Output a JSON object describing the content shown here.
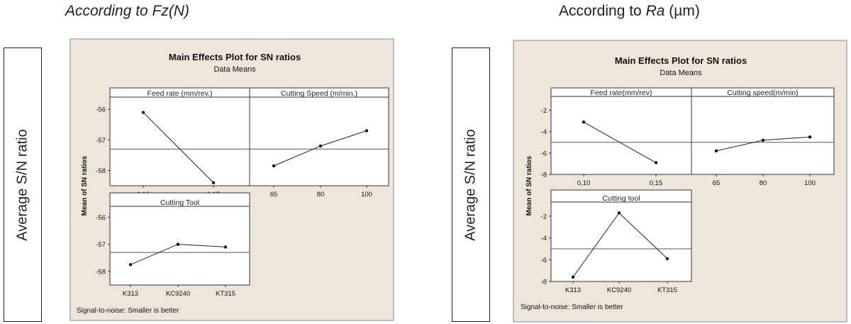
{
  "left": {
    "heading": "According to Fz(N)",
    "side_label": "Average S/N ratio",
    "title": "Main Effects Plot for SN ratios",
    "subtitle": "Data Means",
    "ylabel": "Mean of SN ratios",
    "footnote": "Signal-to-noise: Smaller is better"
  },
  "right": {
    "heading_prefix": "According to ",
    "heading_italic": "Ra",
    "heading_suffix": " (µm)",
    "side_label": "Average S/N ratio",
    "title": "Main Effects Plot for SN ratios",
    "subtitle": "Data Means",
    "ylabel": "Mean of SN ratios",
    "footnote": "Signal-to-noise: Smaller is better"
  },
  "colors": {
    "panel_bg": "#efe6db",
    "plot_bg": "#ffffff",
    "line": "#222222"
  },
  "chart_data": [
    {
      "type": "line",
      "title": "Main Effects Plot for SN ratios",
      "subtitle": "Data Means",
      "ylabel": "Mean of SN ratios",
      "mean_line": -57.3,
      "panels": [
        {
          "name": "Feed rate (mm/rev.)",
          "categories": [
            "0,10",
            "0,15"
          ],
          "values": [
            -56.1,
            -58.4
          ],
          "ylim": [
            -58.5,
            -55.6
          ],
          "yticks": [
            -56,
            -57,
            -58
          ]
        },
        {
          "name": "Cutting Speed (m/min.)",
          "categories": [
            "65",
            "80",
            "100"
          ],
          "values": [
            -57.85,
            -57.2,
            -56.7
          ],
          "ylim": [
            -58.5,
            -55.6
          ],
          "yticks": []
        },
        {
          "name": "Cutting Tool",
          "categories": [
            "K313",
            "KC9240",
            "KT315"
          ],
          "values": [
            -57.75,
            -57.0,
            -57.1
          ],
          "ylim": [
            -58.5,
            -55.6
          ],
          "yticks": [
            -56,
            -57,
            -58
          ]
        }
      ]
    },
    {
      "type": "line",
      "title": "Main Effects Plot for SN ratios",
      "subtitle": "Data Means",
      "ylabel": "Mean of SN ratios",
      "mean_line": -5.0,
      "panels": [
        {
          "name": "Feed rate(mm/rev)",
          "categories": [
            "0,10",
            "0,15"
          ],
          "values": [
            -3.1,
            -6.9
          ],
          "ylim": [
            -8,
            -0.7
          ],
          "yticks": [
            -2,
            -4,
            -6,
            -8
          ]
        },
        {
          "name": "Cutting speed(m/min)",
          "categories": [
            "65",
            "80",
            "100"
          ],
          "values": [
            -5.8,
            -4.8,
            -4.5
          ],
          "ylim": [
            -8,
            -0.7
          ],
          "yticks": []
        },
        {
          "name": "Cutting tool",
          "categories": [
            "K313",
            "KC9240",
            "KT315"
          ],
          "values": [
            -7.6,
            -1.7,
            -5.9
          ],
          "ylim": [
            -8,
            -0.7
          ],
          "yticks": [
            -2,
            -4,
            -6,
            -8
          ]
        }
      ]
    }
  ]
}
